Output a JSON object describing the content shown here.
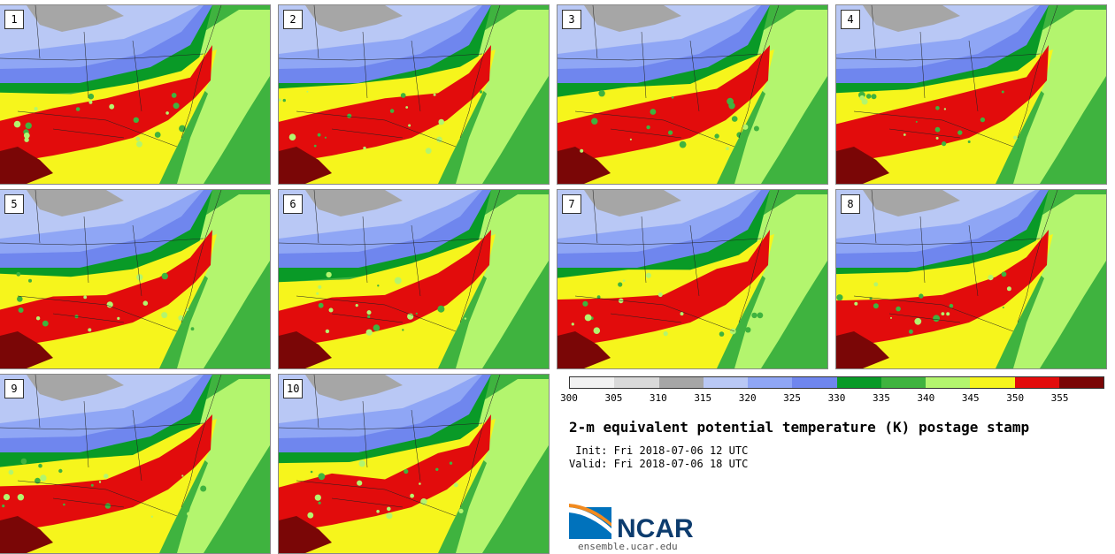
{
  "panels": [
    {
      "label": "1"
    },
    {
      "label": "2"
    },
    {
      "label": "3"
    },
    {
      "label": "4"
    },
    {
      "label": "5"
    },
    {
      "label": "6"
    },
    {
      "label": "7"
    },
    {
      "label": "8"
    },
    {
      "label": "9"
    },
    {
      "label": "10"
    }
  ],
  "colorbar": {
    "colors": [
      "#f2f2f2",
      "#d9d9d9",
      "#a6a6a6",
      "#b9c8f5",
      "#8fa6f5",
      "#6f86ee",
      "#099a27",
      "#3fb33f",
      "#b3f56e",
      "#f6f51c",
      "#e20c0c",
      "#7a0606"
    ],
    "ticks": [
      "300",
      "305",
      "310",
      "315",
      "320",
      "325",
      "330",
      "335",
      "340",
      "345",
      "350",
      "355"
    ]
  },
  "title": "2-m equivalent potential temperature (K) postage stamp",
  "init_line": " Init: Fri 2018-07-06 12 UTC",
  "valid_line": "Valid: Fri 2018-07-06 18 UTC",
  "logo": {
    "name": "NCAR",
    "site": "ensemble.ucar.edu",
    "color": "#0d3c6e",
    "accent": "#0072bc"
  }
}
